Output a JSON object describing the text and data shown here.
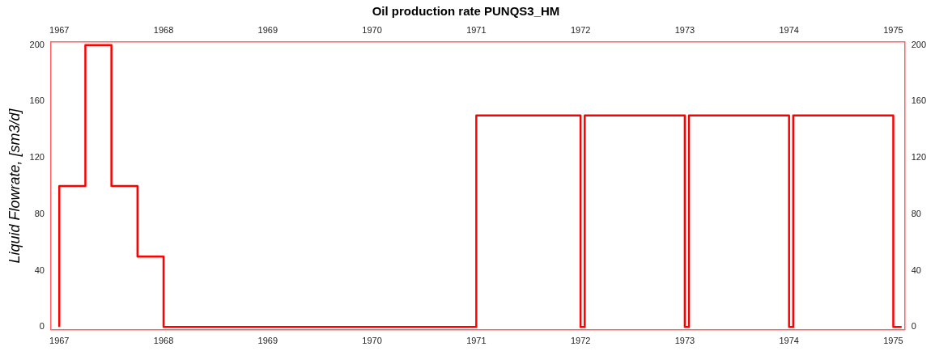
{
  "chart_data": {
    "type": "step",
    "title": "Oil production rate PUNQS3_HM",
    "ylabel": "Liquid Flowrate, [sm3/d]",
    "x": [
      1967,
      1967,
      1967.25,
      1967.5,
      1967.75,
      1968,
      1971,
      1972,
      1972.04,
      1973,
      1973.04,
      1974,
      1974.04,
      1975,
      1975.08
    ],
    "values": [
      0,
      100,
      200,
      100,
      50,
      0,
      150,
      0,
      150,
      0,
      150,
      0,
      150,
      0,
      0
    ],
    "color": "#ff0000",
    "xlim": [
      1966.92,
      1975.11
    ],
    "xticks": [
      1967,
      1968,
      1969,
      1970,
      1971,
      1972,
      1973,
      1974,
      1975
    ],
    "x2lim": [
      1966.92,
      1975.11
    ],
    "x2ticks": [
      1967,
      1968,
      1969,
      1970,
      1971,
      1972,
      1973,
      1974,
      1975
    ],
    "ylim": [
      -2,
      202
    ],
    "yticks": [
      0,
      40,
      80,
      120,
      160,
      200
    ],
    "y2lim": [
      -2,
      202
    ],
    "y2ticks": [
      0,
      40,
      80,
      120,
      160,
      200
    ]
  }
}
